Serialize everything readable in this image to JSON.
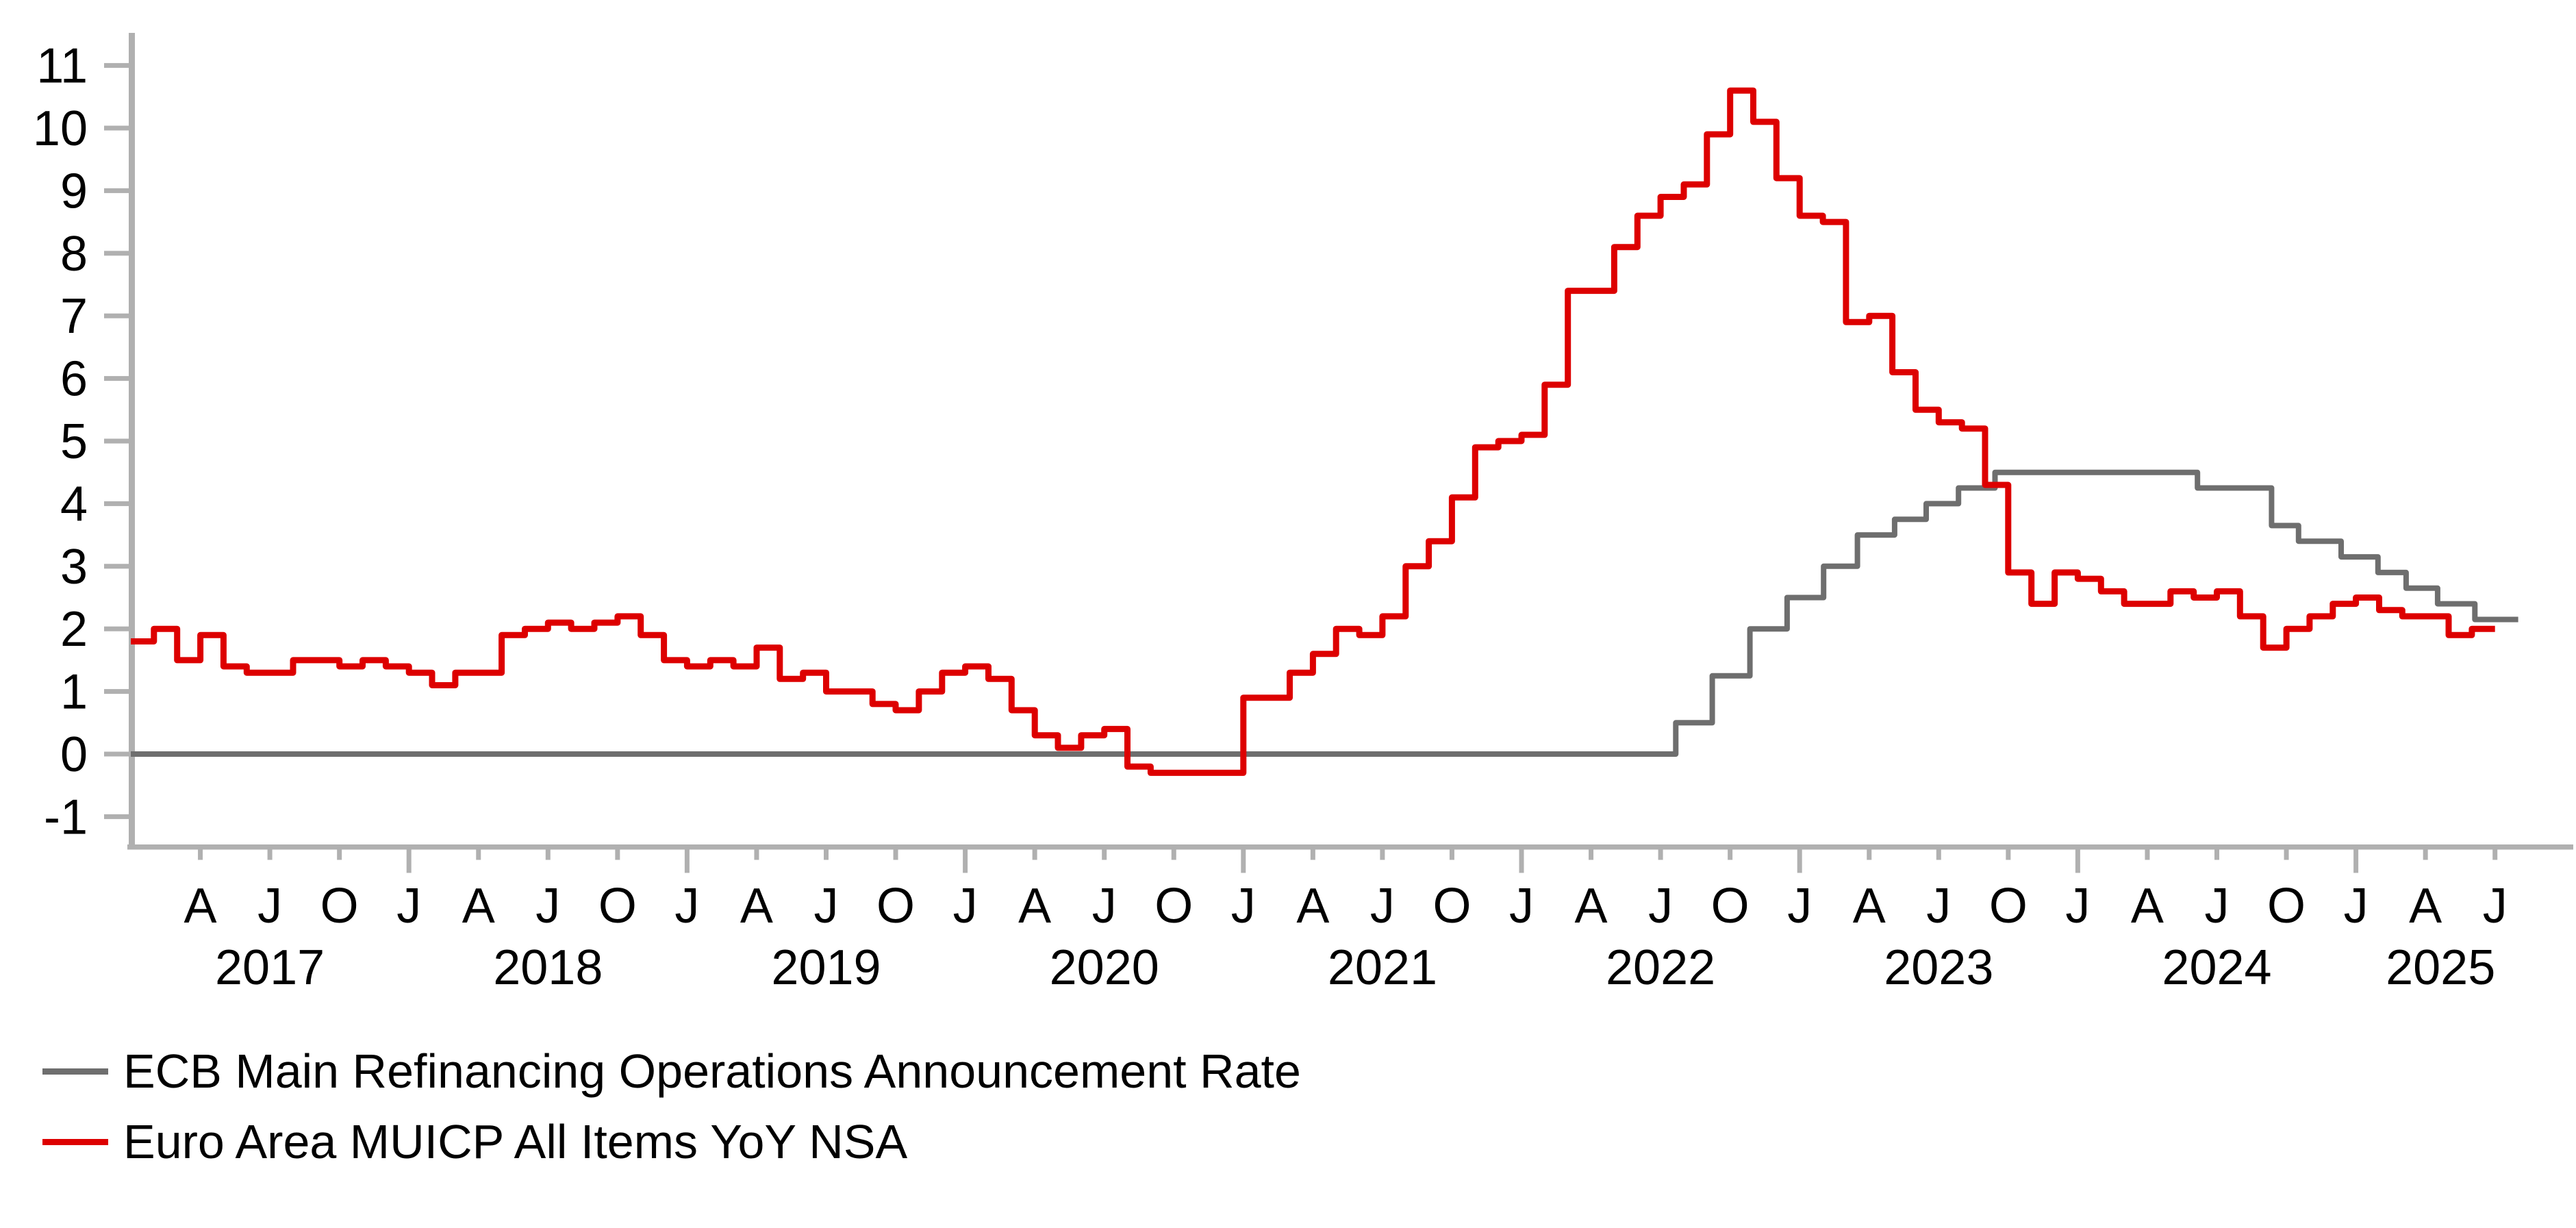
{
  "chart_data": {
    "type": "line",
    "title": "",
    "xlabel": "",
    "ylabel": "",
    "grid": false,
    "legend_position": "bottom-left",
    "y_axis": {
      "min": -1,
      "max": 11,
      "step": 1,
      "tick_labels": [
        "-1",
        "0",
        "1",
        "2",
        "3",
        "4",
        "5",
        "6",
        "7",
        "8",
        "9",
        "10",
        "11"
      ]
    },
    "x_axis": {
      "start_month": "2017-01",
      "end_month": "2025-08",
      "tick_rule": "ticks at Jan (long), Apr, Jul, Oct (short)",
      "month_letter_by_month": {
        "1": "J",
        "4": "A",
        "7": "J",
        "10": "O"
      },
      "tick_letters": [
        "A",
        "J",
        "O",
        "J",
        "A",
        "J",
        "O",
        "J",
        "A",
        "J",
        "O",
        "J",
        "A",
        "J",
        "O",
        "J",
        "A",
        "J",
        "O",
        "J",
        "A",
        "J",
        "O",
        "J",
        "A",
        "J",
        "O",
        "J",
        "A",
        "J",
        "O",
        "J",
        "A",
        "J"
      ],
      "year_labels": [
        "2017",
        "2018",
        "2019",
        "2020",
        "2021",
        "2022",
        "2023",
        "2024",
        "2025"
      ]
    },
    "series": [
      {
        "name": "ECB Main Refinancing Operations Announcement Rate",
        "color": "#6e6e6e",
        "style": "step",
        "start_month": "2017-01",
        "start_value": 0.0,
        "end_month": "2025-08",
        "end_value": 2.15,
        "rate_changes": [
          [
            "2022-07-21",
            0.5
          ],
          [
            "2022-09-08",
            1.25
          ],
          [
            "2022-10-27",
            2.0
          ],
          [
            "2022-12-15",
            2.5
          ],
          [
            "2023-02-02",
            3.0
          ],
          [
            "2023-03-16",
            3.5
          ],
          [
            "2023-05-04",
            3.75
          ],
          [
            "2023-06-15",
            4.0
          ],
          [
            "2023-07-27",
            4.25
          ],
          [
            "2023-09-14",
            4.5
          ],
          [
            "2024-06-06",
            4.25
          ],
          [
            "2024-09-12",
            3.65
          ],
          [
            "2024-10-17",
            3.4
          ],
          [
            "2024-12-12",
            3.15
          ],
          [
            "2025-01-30",
            2.9
          ],
          [
            "2025-03-06",
            2.65
          ],
          [
            "2025-04-17",
            2.4
          ],
          [
            "2025-06-05",
            2.15
          ]
        ]
      },
      {
        "name": "Euro Area MUICP All Items YoY NSA",
        "color": "#dd0000",
        "style": "monthly-step",
        "start_month": "2017-01",
        "end_month": "2025-07",
        "values": [
          1.8,
          2.0,
          1.5,
          1.9,
          1.4,
          1.3,
          1.3,
          1.5,
          1.5,
          1.4,
          1.5,
          1.4,
          1.3,
          1.1,
          1.3,
          1.3,
          1.9,
          2.0,
          2.1,
          2.0,
          2.1,
          2.2,
          1.9,
          1.5,
          1.4,
          1.5,
          1.4,
          1.7,
          1.2,
          1.3,
          1.0,
          1.0,
          0.8,
          0.7,
          1.0,
          1.3,
          1.4,
          1.2,
          0.7,
          0.3,
          0.1,
          0.3,
          0.4,
          -0.2,
          -0.3,
          -0.3,
          -0.3,
          -0.3,
          0.9,
          0.9,
          1.3,
          1.6,
          2.0,
          1.9,
          2.2,
          3.0,
          3.4,
          4.1,
          4.9,
          5.0,
          5.1,
          5.9,
          7.4,
          7.4,
          8.1,
          8.6,
          8.9,
          9.1,
          9.9,
          10.6,
          10.1,
          9.2,
          8.6,
          8.5,
          6.9,
          7.0,
          6.1,
          5.5,
          5.3,
          5.2,
          4.3,
          2.9,
          2.4,
          2.9,
          2.8,
          2.6,
          2.4,
          2.4,
          2.6,
          2.5,
          2.6,
          2.2,
          1.7,
          2.0,
          2.2,
          2.4,
          2.5,
          2.3,
          2.2,
          2.2,
          1.9,
          2.0,
          2.0
        ]
      }
    ]
  },
  "legend": {
    "items": [
      {
        "label": "ECB Main Refinancing Operations Announcement Rate",
        "color": "#6e6e6e"
      },
      {
        "label": "Euro Area MUICP All Items YoY NSA",
        "color": "#dd0000"
      }
    ]
  },
  "colors": {
    "background": "#ffffff",
    "axis": "#b0b0b0",
    "text": "#000000",
    "ecb_rate_line": "#6e6e6e",
    "inflation_line": "#dd0000"
  }
}
